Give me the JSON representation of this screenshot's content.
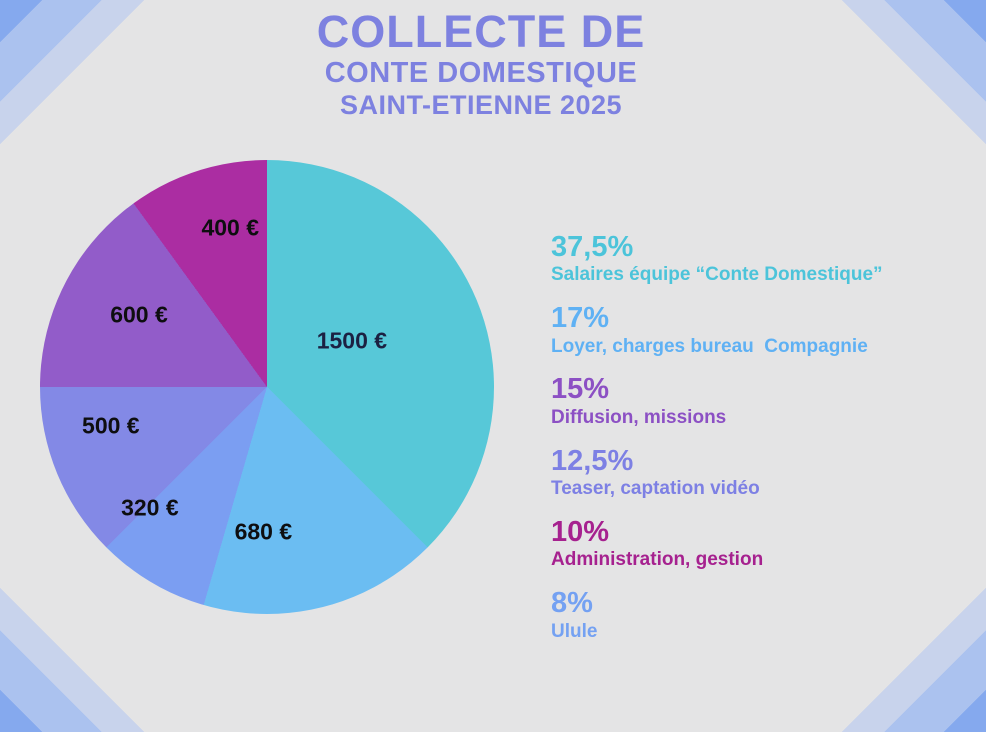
{
  "title": {
    "line1": "COLLECTE DE",
    "line2": "CONTE DOMESTIQUE",
    "line3": "SAINT-ETIENNE 2025",
    "color": "#7d81e0"
  },
  "background": {
    "base_color": "#e4e4e5",
    "corner_band_colors": [
      "#85a9ee",
      "#abc2ef",
      "#c8d3ec"
    ]
  },
  "chart_data": {
    "type": "pie",
    "title": "Collecte de Conte Domestique Saint-Etienne 2025",
    "start_angle_deg": 0,
    "direction": "clockwise",
    "slices": [
      {
        "name": "Salaires équipe “Conte Domestique”",
        "value": 1500,
        "value_label": "1500 €",
        "pct": 37.5,
        "color": "#57c8d8",
        "label_color": "#1c2142",
        "label_pos": {
          "x": 68.7,
          "y": 39.9
        }
      },
      {
        "name": "Loyer, charges bureau  Compagnie",
        "value": 680,
        "value_label": "680 €",
        "pct": 17,
        "color": "#6bbdf2",
        "label_color": "#0e0e10",
        "label_pos": {
          "x": 49.2,
          "y": 82.0
        }
      },
      {
        "name": "Ulule",
        "value": 320,
        "value_label": "320 €",
        "pct": 8,
        "color": "#7b9ef2",
        "label_color": "#0e0e10",
        "label_pos": {
          "x": 24.2,
          "y": 76.7
        }
      },
      {
        "name": "Teaser, captation vidéo",
        "value": 500,
        "value_label": "500 €",
        "pct": 12.5,
        "color": "#8389e6",
        "label_color": "#0e0e10",
        "label_pos": {
          "x": 15.6,
          "y": 58.6
        }
      },
      {
        "name": "Diffusion, missions",
        "value": 600,
        "value_label": "600 €",
        "pct": 15,
        "color": "#925cc9",
        "label_color": "#0e0e10",
        "label_pos": {
          "x": 21.8,
          "y": 34.1
        }
      },
      {
        "name": "Administration, gestion",
        "value": 400,
        "value_label": "400 €",
        "pct": 10,
        "color": "#ab2da2",
        "label_color": "#0e0e10",
        "label_pos": {
          "x": 41.9,
          "y": 15.0
        }
      }
    ]
  },
  "legend": {
    "items": [
      {
        "pct": "37,5%",
        "label": "Salaires équipe “Conte Domestique”",
        "color": "#4cc4da"
      },
      {
        "pct": "17%",
        "label": "Loyer, charges bureau  Compagnie",
        "color": "#5fb1f4"
      },
      {
        "pct": "15%",
        "label": "Diffusion, missions",
        "color": "#8c50c4"
      },
      {
        "pct": "12,5%",
        "label": "Teaser, captation vidéo",
        "color": "#7d80e4"
      },
      {
        "pct": "10%",
        "label": "Administration, gestion",
        "color": "#a6218f"
      },
      {
        "pct": "8%",
        "label": "Ulule",
        "color": "#74a1f2"
      }
    ]
  }
}
